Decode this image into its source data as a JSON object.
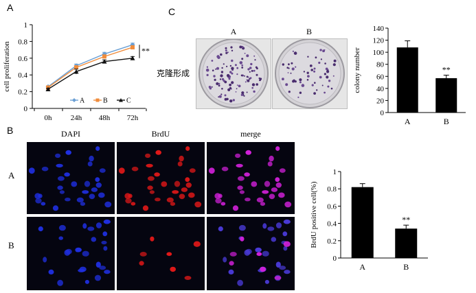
{
  "panels": {
    "a": "A",
    "b": "B",
    "c": "C"
  },
  "colony": {
    "label_cn": "克隆形成",
    "dishes": [
      {
        "label": "A",
        "colonies": 108
      },
      {
        "label": "B",
        "colonies": 57
      }
    ]
  },
  "brdu_panel": {
    "columns": [
      "DAPI",
      "BrdU",
      "merge"
    ],
    "rows": [
      "A",
      "B"
    ],
    "colors": {
      "dapi": "#1f2fe0",
      "brdu": "#e01818",
      "merge": "#d020d8"
    }
  },
  "chart_data": [
    {
      "type": "line",
      "ylabel": "cell proliferation",
      "xlabel": "",
      "categories": [
        "0h",
        "24h",
        "48h",
        "72h"
      ],
      "ylim": [
        0,
        1
      ],
      "yticks": [
        "0",
        "0.2",
        "0.4",
        "0.6",
        "0.8",
        "1"
      ],
      "grid": false,
      "legend": "bottom-right",
      "annotation": "**",
      "series": [
        {
          "name": "A",
          "values": [
            0.26,
            0.51,
            0.65,
            0.76
          ],
          "errors": [
            0.01,
            0.02,
            0.02,
            0.02
          ],
          "color": "#6a9fd4",
          "marker": "diamond"
        },
        {
          "name": "B",
          "values": [
            0.25,
            0.49,
            0.62,
            0.73
          ],
          "errors": [
            0.01,
            0.02,
            0.02,
            0.02
          ],
          "color": "#f08c3c",
          "marker": "square"
        },
        {
          "name": "C",
          "values": [
            0.23,
            0.44,
            0.56,
            0.6
          ],
          "errors": [
            0.01,
            0.03,
            0.02,
            0.02
          ],
          "color": "#111111",
          "marker": "triangle"
        }
      ]
    },
    {
      "type": "bar",
      "ylabel": "colony number",
      "xlabel": "",
      "categories": [
        "A",
        "B"
      ],
      "values": [
        108,
        57
      ],
      "errors": [
        11,
        5
      ],
      "ylim": [
        0,
        140
      ],
      "yticks": [
        "0",
        "20",
        "40",
        "60",
        "80",
        "100",
        "120",
        "140"
      ],
      "grid": false,
      "annotations": [
        "",
        "**"
      ]
    },
    {
      "type": "bar",
      "ylabel": "BrdU positive cell(%)",
      "xlabel": "",
      "categories": [
        "A",
        "B"
      ],
      "values": [
        0.82,
        0.34
      ],
      "errors": [
        0.04,
        0.04
      ],
      "ylim": [
        0,
        1
      ],
      "yticks": [
        "0",
        "0.2",
        "0.4",
        "0.6",
        "0.8",
        "1"
      ],
      "grid": false,
      "annotations": [
        "",
        "**"
      ]
    }
  ]
}
